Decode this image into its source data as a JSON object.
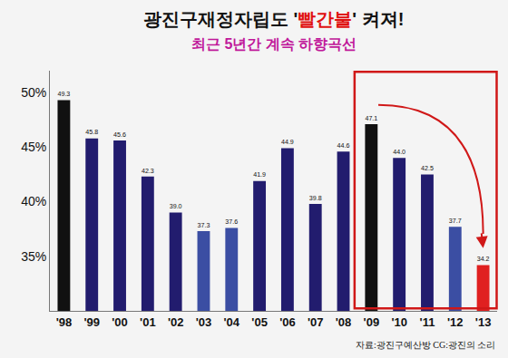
{
  "chart_data": {
    "type": "bar",
    "title": "광진구재정자립도 '빨간불' 켜져!",
    "subtitle": "최근 5년간 계속 하향곡선",
    "annotations": [
      "자료:광진구예산방 CG:광진의 소리"
    ],
    "categories": [
      "'98",
      "'99",
      "'00",
      "'01",
      "'02",
      "'03",
      "'04",
      "'05",
      "'06",
      "'07",
      "'08",
      "'09",
      "'10",
      "'11",
      "'12",
      "'13"
    ],
    "values": [
      49.3,
      45.8,
      45.6,
      42.3,
      39.0,
      37.3,
      37.6,
      41.9,
      44.9,
      39.8,
      44.6,
      47.1,
      44.0,
      42.5,
      37.7,
      34.2
    ],
    "value_labels": [
      "49.3",
      "45.8",
      "45.6",
      "42.3",
      "39.0",
      "37.3",
      "37.6",
      "41.9",
      "44.9",
      "39.8",
      "44.6",
      "47.1",
      "44.0",
      "42.5",
      "37.7",
      "34.2"
    ],
    "colors": [
      "#111111",
      "#221c6e",
      "#221c6e",
      "#221c6e",
      "#221c6e",
      "#3b4ea3",
      "#3b4ea3",
      "#221c6e",
      "#221c6e",
      "#221c6e",
      "#221c6e",
      "#111111",
      "#221c6e",
      "#221c6e",
      "#3b4ea3",
      "#e02020"
    ],
    "data_labels": true,
    "ylim": [
      30,
      52
    ],
    "yticks": [
      {
        "value": 35,
        "label": "35%"
      },
      {
        "value": 40,
        "label": "40%"
      },
      {
        "value": 45,
        "label": "45%"
      },
      {
        "value": 50,
        "label": "50%"
      }
    ],
    "grid": false
  }
}
